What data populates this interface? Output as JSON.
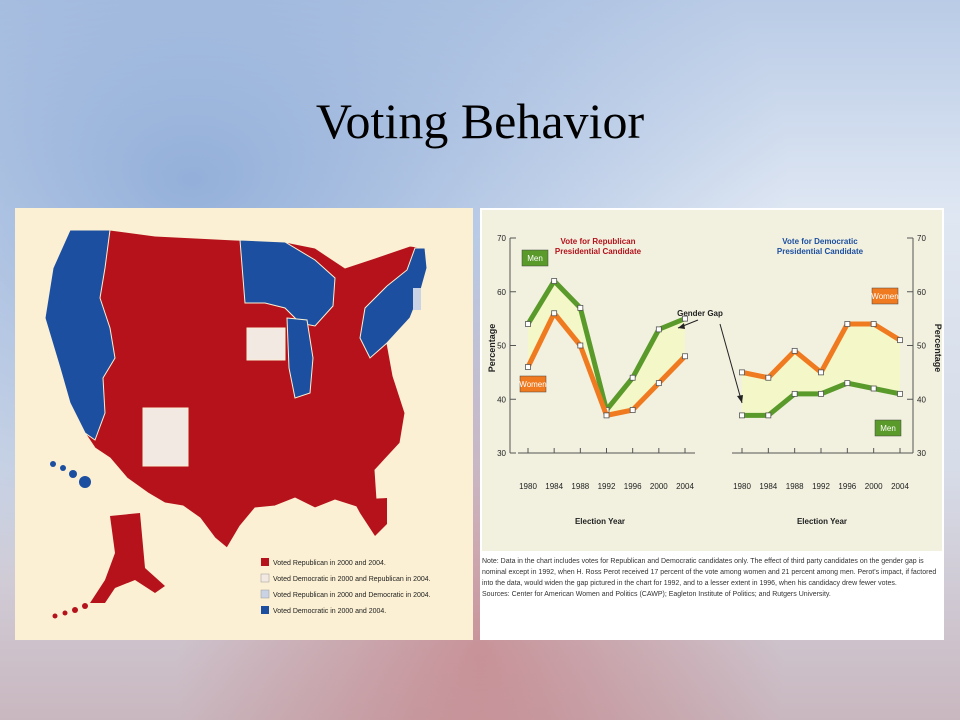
{
  "slide": {
    "title": "Voting Behavior"
  },
  "map": {
    "colors": {
      "republican": "#b5121b",
      "democratic": "#1c4fa0",
      "dem_then_rep": "#f3e9e3",
      "rep_then_dem": "#c9d3e5",
      "background": "#fbf0d3"
    },
    "legend": [
      "Voted Republican in 2000 and 2004.",
      "Voted Democratic in 2000 and Republican in 2004.",
      "Voted Republican in 2000 and Democratic in 2004.",
      "Voted Democratic in 2000 and 2004."
    ]
  },
  "chart_data": [
    {
      "type": "line",
      "title": "Vote for Republican Presidential Candidate",
      "xlabel": "Election Year",
      "ylabel": "Percentage",
      "x": [
        1980,
        1984,
        1988,
        1992,
        1996,
        2000,
        2004
      ],
      "ylim": [
        30,
        70
      ],
      "yticks": [
        30,
        40,
        50,
        60,
        70
      ],
      "series": [
        {
          "name": "Men",
          "color": "#5a9a2a",
          "values": [
            54,
            62,
            57,
            38,
            44,
            53,
            55
          ]
        },
        {
          "name": "Women",
          "color": "#f07a1f",
          "values": [
            46,
            56,
            50,
            37,
            38,
            43,
            48
          ]
        }
      ]
    },
    {
      "type": "line",
      "title": "Vote for Democratic Presidential Candidate",
      "xlabel": "Election Year",
      "ylabel": "Percentage",
      "x": [
        1980,
        1984,
        1988,
        1992,
        1996,
        2000,
        2004
      ],
      "ylim": [
        30,
        70
      ],
      "yticks": [
        30,
        40,
        50,
        60,
        70
      ],
      "series": [
        {
          "name": "Women",
          "color": "#f07a1f",
          "values": [
            45,
            44,
            49,
            45,
            54,
            54,
            51
          ]
        },
        {
          "name": "Men",
          "color": "#5a9a2a",
          "values": [
            37,
            37,
            41,
            41,
            43,
            42,
            41
          ]
        }
      ]
    }
  ],
  "gender_gap_label": "Gender Gap",
  "chart_colors": {
    "gap_fill": "#f4f7c8",
    "panel_bg": "#f2f1e0",
    "title_republican": "#b5121b",
    "title_democratic": "#1c4fa0"
  },
  "note": "Note: Data in the chart includes votes for Republican and Democratic candidates only. The effect of third party candidates on the gender gap is nominal except in 1992, when H. Ross Perot received 17 percent of the vote among women and 21 percent among men. Perot's impact, if factored into the data, would widen the gap pictured in the chart for 1992, and to a lesser extent in 1996, when his candidacy drew fewer votes.",
  "sources": "Sources: Center for American Women and Politics (CAWP); Eagleton Institute of Politics; and Rutgers University."
}
